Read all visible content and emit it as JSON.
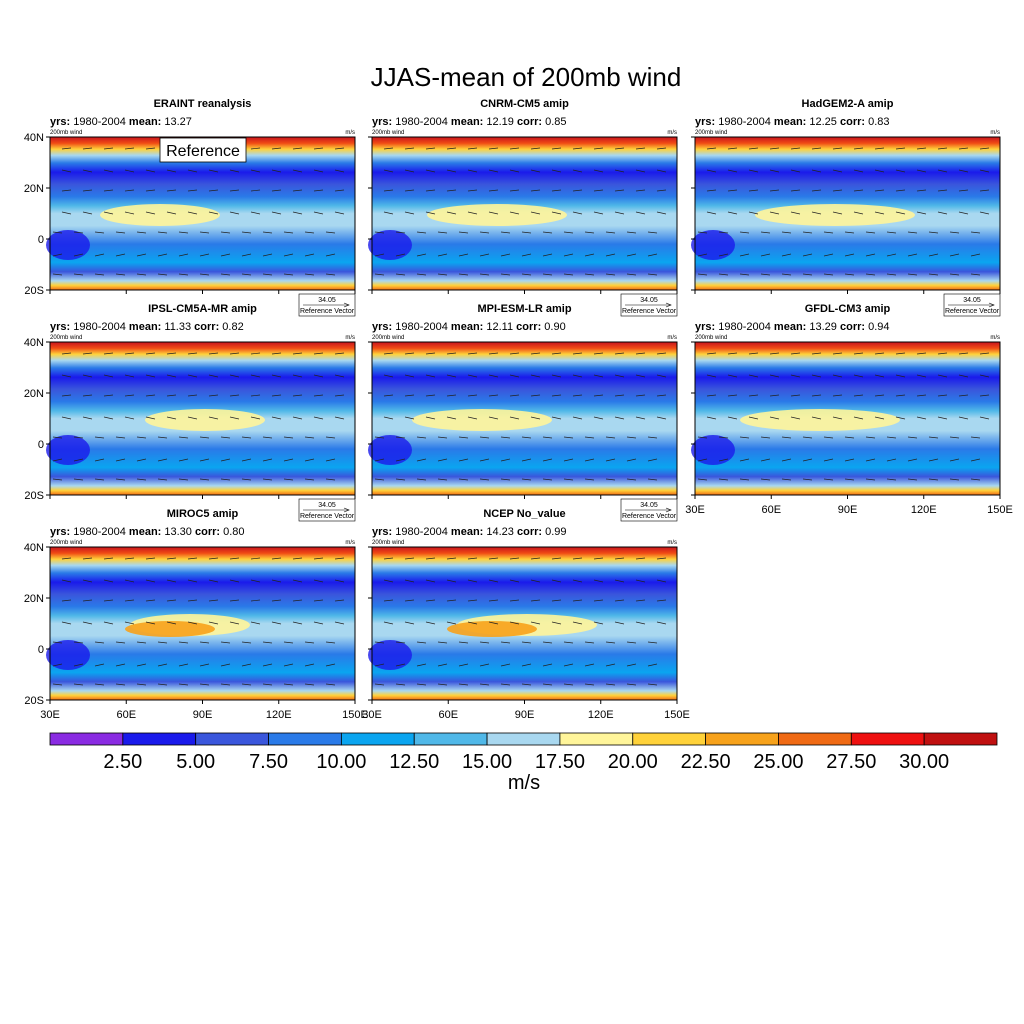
{
  "title": "JJAS-mean of 200mb wind",
  "labels": {
    "yrs": "yrs:",
    "mean": "mean:",
    "corr": "corr:",
    "field": "200mb wind",
    "unit": "m/s",
    "reference": "Reference",
    "ref_value": "34.05",
    "ref_text": "Reference Vector"
  },
  "lat_ticks": [
    "40N",
    "20N",
    "0",
    "20S"
  ],
  "lon_ticks": [
    "30E",
    "60E",
    "90E",
    "120E",
    "150E"
  ],
  "panels": [
    {
      "title": "ERAINT reanalysis",
      "yrs": "1980-2004",
      "mean": "13.27"
    },
    {
      "title": "CNRM-CM5 amip",
      "yrs": "1980-2004",
      "mean": "12.19",
      "corr": "0.85"
    },
    {
      "title": "HadGEM2-A amip",
      "yrs": "1980-2004",
      "mean": "12.25",
      "corr": "0.83"
    },
    {
      "title": "IPSL-CM5A-MR amip",
      "yrs": "1980-2004",
      "mean": "11.33",
      "corr": "0.82"
    },
    {
      "title": "MPI-ESM-LR amip",
      "yrs": "1980-2004",
      "mean": "12.11",
      "corr": "0.90"
    },
    {
      "title": "GFDL-CM3 amip",
      "yrs": "1980-2004",
      "mean": "13.29",
      "corr": "0.94"
    },
    {
      "title": "MIROC5 amip",
      "yrs": "1980-2004",
      "mean": "13.30",
      "corr": "0.80"
    },
    {
      "title": "NCEP No_value",
      "yrs": "1980-2004",
      "mean": "14.23",
      "corr": "0.99"
    }
  ],
  "colorbar": {
    "colors": [
      "#8a2be2",
      "#1a1aeb",
      "#3a56dc",
      "#2a7ae8",
      "#0aa5f0",
      "#50b8e8",
      "#a9d8f0",
      "#fff59a",
      "#ffd23a",
      "#f7a21b",
      "#f06a14",
      "#ee1010",
      "#c01010"
    ],
    "labels": [
      "2.50",
      "5.00",
      "7.50",
      "10.00",
      "12.50",
      "15.00",
      "17.50",
      "20.00",
      "22.50",
      "25.00",
      "27.50",
      "30.00"
    ],
    "unit": "m/s"
  }
}
